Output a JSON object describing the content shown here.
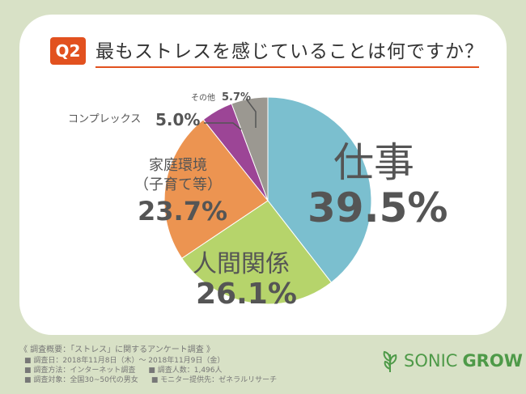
{
  "header": {
    "badge": "Q2",
    "title": "最もストレスを感じていることは何ですか？"
  },
  "chart_data": {
    "type": "pie",
    "title": "最もストレスを感じていることは何ですか？",
    "categories": [
      "仕事",
      "人間関係",
      "家庭環境（子育て等）",
      "コンプレックス",
      "その他"
    ],
    "values": [
      39.5,
      26.1,
      23.7,
      5.0,
      5.7
    ],
    "colors": [
      "#7bbfcf",
      "#b6d46b",
      "#ec9451",
      "#9c4596",
      "#9b9891"
    ],
    "labels": {
      "work": "仕事",
      "work_pct": "39.5%",
      "rel": "人間関係",
      "rel_pct": "26.1%",
      "home1": "家庭環境",
      "home2": "（子育て等）",
      "home_pct": "23.7%",
      "comp": "コンプレックス",
      "comp_pct": "5.0%",
      "other": "その他",
      "other_pct": "5.7%"
    }
  },
  "footer": {
    "heading": "《 調査概要：「ストレス」に関するアンケート調査 》",
    "lines": [
      "■ 調査日：2018年11月8日（木）～ 2018年11月9日（金）",
      "■ 調査方法：インターネット調査",
      "■ 調査人数：1,496人",
      "■ 調査対象：全国30~50代の男女",
      "■ モニター提供先：ゼネラルリサーチ"
    ]
  },
  "logo": {
    "text1": "SONIC",
    "text2": "GROW"
  }
}
